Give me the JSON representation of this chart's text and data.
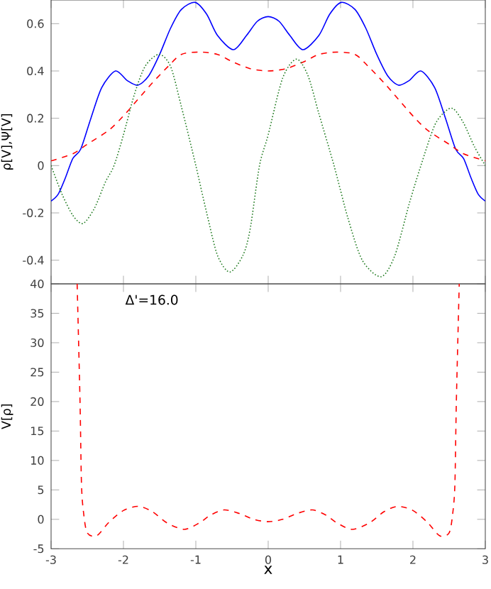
{
  "chart_data": [
    {
      "type": "line",
      "ylabel": "ρ[V],Ψ[V]",
      "xlim": [
        -3,
        3
      ],
      "ylim": [
        -0.5,
        0.7
      ],
      "xticks": [
        -3,
        -2,
        -1,
        0,
        1,
        2,
        3
      ],
      "yticks": [
        -0.4,
        -0.2,
        0,
        0.2,
        0.4,
        0.6
      ],
      "tick_labels": "y",
      "grid": false,
      "series": [
        {
          "color": "#0000ff",
          "line_style": "solid",
          "x": [
            -3,
            -2.9,
            -2.8,
            -2.7,
            -2.59,
            -2.45,
            -2.3,
            -2.11,
            -1.95,
            -1.8,
            -1.65,
            -1.5,
            -1.35,
            -1.2,
            -1.01,
            -0.85,
            -0.7,
            -0.48,
            -0.3,
            -0.15,
            0,
            0.15,
            0.3,
            0.48,
            0.7,
            0.85,
            1.01,
            1.2,
            1.35,
            1.5,
            1.65,
            1.8,
            1.95,
            2.11,
            2.3,
            2.45,
            2.59,
            2.7,
            2.8,
            2.9,
            3
          ],
          "values": [
            -0.15,
            -0.12,
            -0.05,
            0.03,
            0.07,
            0.2,
            0.33,
            0.4,
            0.36,
            0.34,
            0.38,
            0.47,
            0.58,
            0.66,
            0.69,
            0.64,
            0.55,
            0.49,
            0.55,
            0.61,
            0.63,
            0.61,
            0.55,
            0.49,
            0.55,
            0.64,
            0.69,
            0.66,
            0.58,
            0.47,
            0.38,
            0.34,
            0.36,
            0.4,
            0.33,
            0.2,
            0.07,
            0.03,
            -0.05,
            -0.12,
            -0.15
          ]
        },
        {
          "color": "#ff0000",
          "line_style": "dashed",
          "x": [
            -3,
            -2.7,
            -2.5,
            -2.2,
            -2,
            -1.8,
            -1.6,
            -1.38,
            -1.2,
            -0.95,
            -0.7,
            -0.5,
            -0.25,
            0,
            0.25,
            0.5,
            0.7,
            0.95,
            1.2,
            1.38,
            1.6,
            1.8,
            2,
            2.2,
            2.5,
            2.7,
            3
          ],
          "values": [
            0.02,
            0.05,
            0.09,
            0.15,
            0.21,
            0.28,
            0.35,
            0.42,
            0.47,
            0.48,
            0.47,
            0.44,
            0.41,
            0.4,
            0.41,
            0.44,
            0.47,
            0.48,
            0.47,
            0.42,
            0.35,
            0.28,
            0.21,
            0.15,
            0.09,
            0.05,
            0.02
          ]
        },
        {
          "color": "#1f7a1f",
          "line_style": "dotted",
          "x": [
            -3,
            -2.85,
            -2.7,
            -2.56,
            -2.4,
            -2.25,
            -2.13,
            -2,
            -1.85,
            -1.7,
            -1.51,
            -1.35,
            -1.2,
            -1,
            -0.85,
            -0.7,
            -0.53,
            -0.35,
            -0.25,
            -0.12,
            0,
            0.2,
            0.39,
            0.55,
            0.7,
            0.91,
            1.1,
            1.3,
            1.56,
            1.75,
            1.95,
            2.11,
            2.3,
            2.45,
            2.56,
            2.7,
            2.85,
            3
          ],
          "values": [
            0,
            -0.12,
            -0.21,
            -0.245,
            -0.18,
            -0.07,
            0,
            0.13,
            0.3,
            0.42,
            0.47,
            0.42,
            0.25,
            0,
            -0.2,
            -0.38,
            -0.45,
            -0.38,
            -0.27,
            0,
            0.13,
            0.37,
            0.45,
            0.38,
            0.22,
            0,
            -0.22,
            -0.4,
            -0.47,
            -0.38,
            -0.16,
            0,
            0.17,
            0.23,
            0.24,
            0.18,
            0.08,
            0
          ]
        }
      ]
    },
    {
      "type": "line",
      "xlabel": "x",
      "ylabel": "V[ρ]",
      "xlim": [
        -3,
        3
      ],
      "ylim": [
        -5,
        40
      ],
      "xticks": [
        -3,
        -2,
        -1,
        0,
        1,
        2,
        3
      ],
      "yticks": [
        -5,
        0,
        5,
        10,
        15,
        20,
        25,
        30,
        35,
        40
      ],
      "grid": false,
      "annotations": [
        "Δ'=16.0"
      ],
      "series": [
        {
          "color": "#ff0000",
          "line_style": "dashed",
          "x": [
            -2.64,
            -2.6,
            -2.58,
            -2.55,
            -2.5,
            -2.37,
            -2.2,
            -2,
            -1.79,
            -1.6,
            -1.4,
            -1.16,
            -0.95,
            -0.8,
            -0.61,
            -0.4,
            -0.2,
            0,
            0.2,
            0.4,
            0.61,
            0.8,
            0.95,
            1.16,
            1.4,
            1.6,
            1.79,
            2,
            2.2,
            2.37,
            2.5,
            2.55,
            2.58,
            2.6,
            2.64
          ],
          "values": [
            40,
            20,
            6,
            1,
            -2.3,
            -2.8,
            -0.5,
            1.5,
            2.2,
            1.3,
            -0.6,
            -1.7,
            -0.6,
            0.7,
            1.6,
            1,
            0,
            -0.4,
            0,
            1,
            1.6,
            0.7,
            -0.6,
            -1.7,
            -0.6,
            1.3,
            2.2,
            1.5,
            -0.5,
            -2.8,
            -2.3,
            1,
            6,
            20,
            40
          ]
        }
      ]
    }
  ]
}
